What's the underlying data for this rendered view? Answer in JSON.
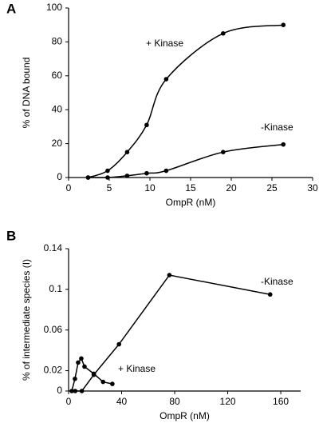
{
  "chart_data": [
    {
      "type": "line",
      "panel_label": "A",
      "smooth": true,
      "xlabel": "OmpR (nM)",
      "ylabel": "% of DNA bound",
      "xlim": [
        0,
        30
      ],
      "xticks": [
        0,
        5,
        10,
        15,
        20,
        25,
        30
      ],
      "ylim": [
        0,
        100
      ],
      "yticks": [
        0,
        20,
        40,
        60,
        80,
        100
      ],
      "series": [
        {
          "name": "+ Kinase",
          "color": "#000000",
          "x": [
            2.4,
            4.8,
            7.2,
            9.6,
            12,
            19,
            26.4
          ],
          "values": [
            0,
            4,
            15,
            31,
            58,
            85,
            90
          ]
        },
        {
          "name": "-Kinase",
          "color": "#000000",
          "x": [
            2.4,
            4.8,
            7.2,
            9.6,
            12,
            19,
            26.4
          ],
          "values": [
            0,
            0,
            1,
            2.5,
            4,
            15,
            19.5
          ]
        }
      ]
    },
    {
      "type": "line",
      "panel_label": "B",
      "smooth": false,
      "xlabel": "OmpR (nM)",
      "ylabel": "% of intermediate species (I)",
      "xlim": [
        0,
        175
      ],
      "xticks": [
        0,
        40,
        80,
        120,
        160
      ],
      "ylim": [
        0,
        0.14
      ],
      "yticks": [
        0,
        0.02,
        0.06,
        0.1,
        0.14
      ],
      "series": [
        {
          "name": "-Kinase",
          "color": "#000000",
          "x": [
            5,
            10,
            19,
            38,
            76,
            152
          ],
          "values": [
            0,
            0,
            0.016,
            0.046,
            0.114,
            0.095
          ]
        },
        {
          "name": "+ Kinase",
          "color": "#000000",
          "x": [
            2.4,
            4.8,
            7.2,
            9.6,
            12,
            19,
            26,
            33
          ],
          "values": [
            0,
            0.012,
            0.028,
            0.032,
            0.024,
            0.017,
            0.009,
            0.007
          ]
        }
      ]
    }
  ]
}
